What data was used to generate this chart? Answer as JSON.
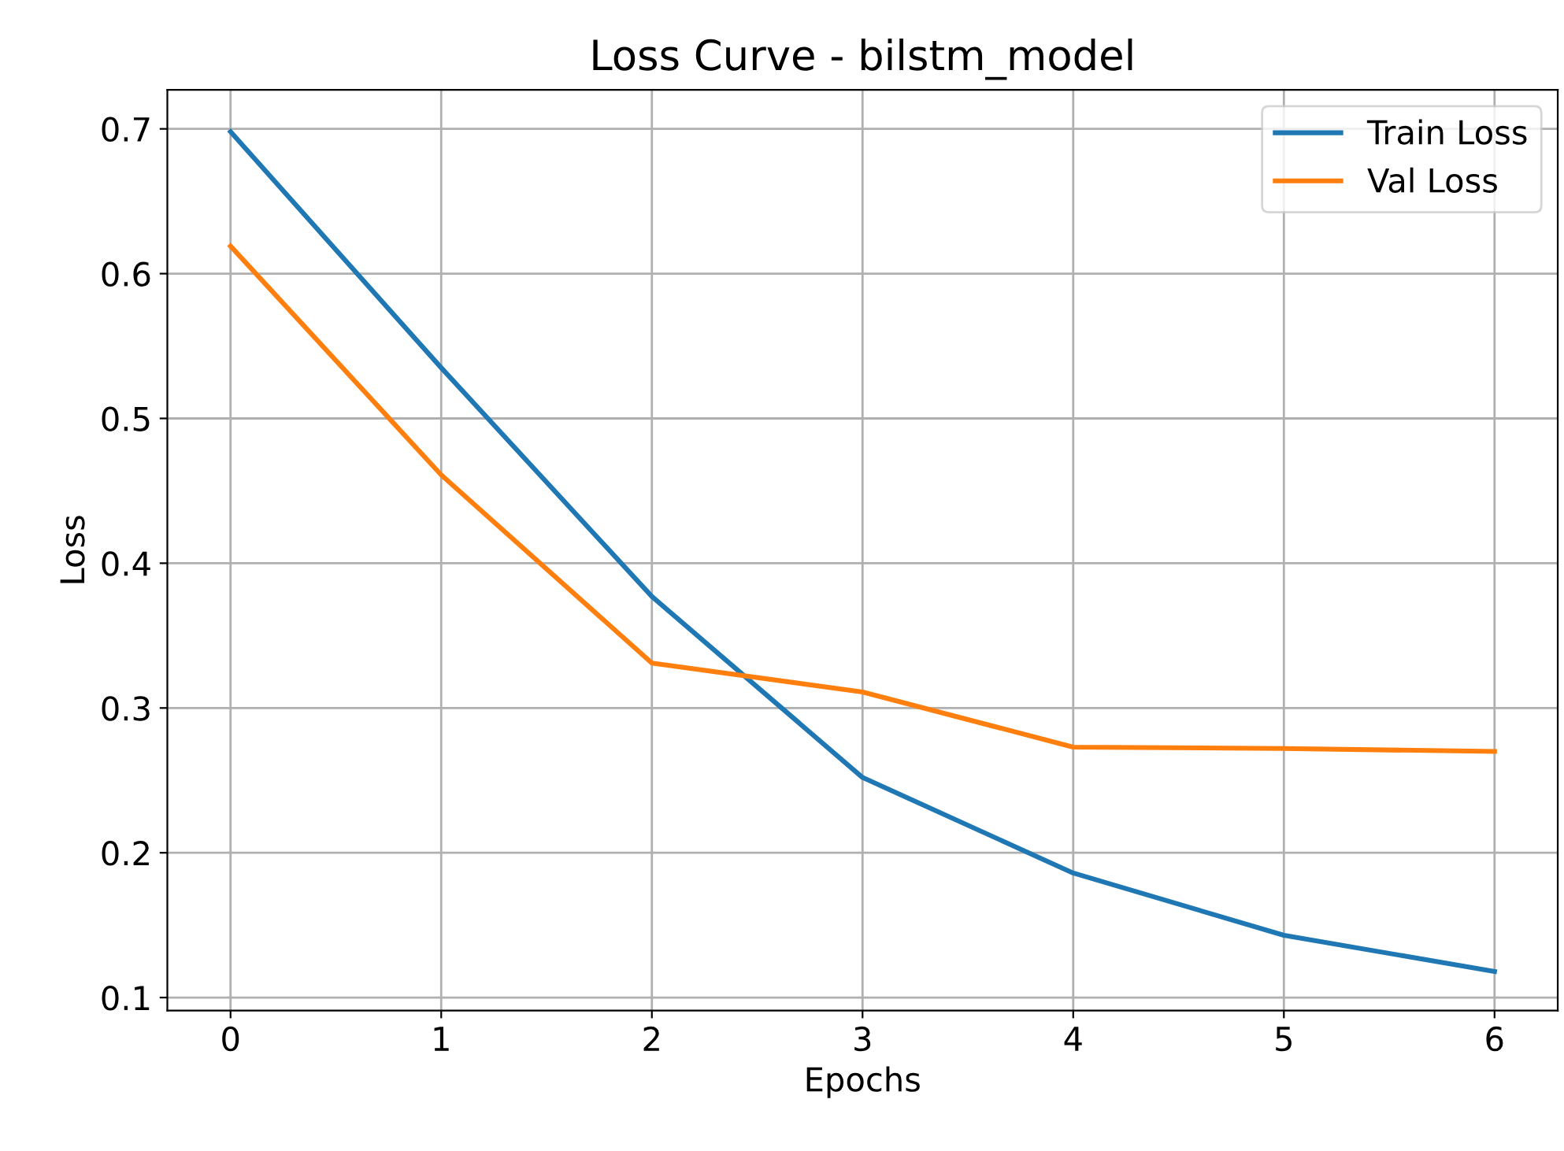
{
  "chart_data": {
    "type": "line",
    "title": "Loss Curve - bilstm_model",
    "xlabel": "Epochs",
    "ylabel": "Loss",
    "x": [
      0,
      1,
      2,
      3,
      4,
      5,
      6
    ],
    "series": [
      {
        "name": "Train Loss",
        "color": "#1f77b4",
        "values": [
          0.698,
          0.535,
          0.377,
          0.252,
          0.186,
          0.143,
          0.118
        ]
      },
      {
        "name": "Val Loss",
        "color": "#ff7f0e",
        "values": [
          0.619,
          0.461,
          0.331,
          0.311,
          0.273,
          0.272,
          0.27
        ]
      }
    ],
    "xlim": [
      -0.3,
      6.3
    ],
    "ylim": [
      0.091,
      0.727
    ],
    "xticks": [
      0,
      1,
      2,
      3,
      4,
      5,
      6
    ],
    "yticks": [
      0.1,
      0.2,
      0.3,
      0.4,
      0.5,
      0.6,
      0.7
    ],
    "grid": true,
    "legend": "top right",
    "marker": "none",
    "line_style": "solid"
  }
}
